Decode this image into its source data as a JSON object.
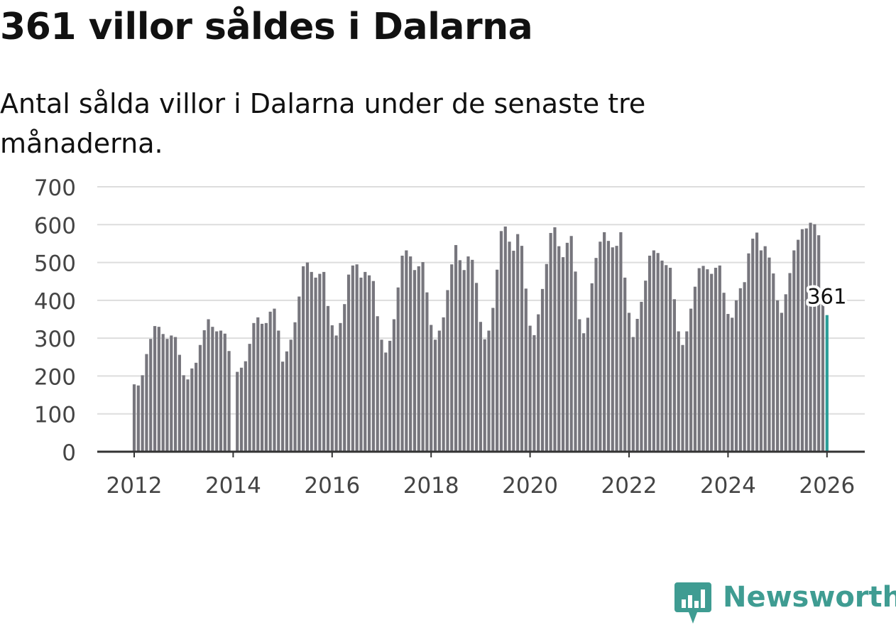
{
  "title": "361 villor såldes i Dalarna",
  "subtitle": "Antal sålda villor i Dalarna under de senaste tre månaderna.",
  "brand": {
    "name": "Newsworthy",
    "color": "#3f9c92"
  },
  "colors": {
    "bar": "#77767d",
    "highlight": "#2a9d98",
    "grid": "#dddddd",
    "axis": "#333333",
    "text": "#444444"
  },
  "chart_data": {
    "type": "bar",
    "title": "361 villor såldes i Dalarna",
    "subtitle": "Antal sålda villor i Dalarna under de senaste tre månaderna.",
    "xlabel": "",
    "ylabel": "",
    "ylim": [
      0,
      700
    ],
    "yticks": [
      "0",
      "100",
      "200",
      "300",
      "400",
      "500",
      "600",
      "700"
    ],
    "xticks": [
      {
        "label": "2012",
        "year": 2012
      },
      {
        "label": "2014",
        "year": 2014
      },
      {
        "label": "2016",
        "year": 2016
      },
      {
        "label": "2018",
        "year": 2018
      },
      {
        "label": "2020",
        "year": 2020
      },
      {
        "label": "2022",
        "year": 2022
      },
      {
        "label": "2024",
        "year": 2024
      },
      {
        "label": "2026",
        "year": 2026
      }
    ],
    "start": {
      "year": 2012,
      "month": 1
    },
    "grid": true,
    "highlight": {
      "label": "361",
      "value": 361,
      "index": 168
    },
    "values": [
      178,
      175,
      202,
      258,
      298,
      332,
      330,
      311,
      298,
      307,
      303,
      256,
      202,
      191,
      220,
      235,
      282,
      321,
      350,
      330,
      318,
      320,
      312,
      266,
      null,
      211,
      222,
      239,
      285,
      340,
      355,
      338,
      340,
      370,
      378,
      320,
      238,
      265,
      296,
      342,
      410,
      490,
      500,
      475,
      460,
      470,
      475,
      385,
      334,
      307,
      340,
      390,
      468,
      492,
      495,
      460,
      475,
      466,
      451,
      358,
      296,
      262,
      293,
      350,
      434,
      518,
      532,
      516,
      480,
      490,
      501,
      421,
      335,
      296,
      320,
      355,
      427,
      495,
      546,
      506,
      480,
      516,
      507,
      446,
      343,
      297,
      320,
      380,
      481,
      583,
      595,
      555,
      531,
      575,
      544,
      431,
      333,
      308,
      363,
      430,
      496,
      578,
      593,
      543,
      514,
      552,
      570,
      476,
      350,
      313,
      354,
      445,
      512,
      555,
      580,
      557,
      540,
      544,
      580,
      460,
      367,
      303,
      351,
      396,
      452,
      518,
      532,
      525,
      505,
      493,
      486,
      403,
      318,
      282,
      318,
      378,
      436,
      485,
      491,
      482,
      470,
      486,
      492,
      420,
      364,
      354,
      400,
      432,
      448,
      524,
      563,
      579,
      532,
      543,
      513,
      471,
      400,
      367,
      416,
      472,
      532,
      560,
      588,
      590,
      605,
      601,
      572,
      431,
      361
    ]
  }
}
